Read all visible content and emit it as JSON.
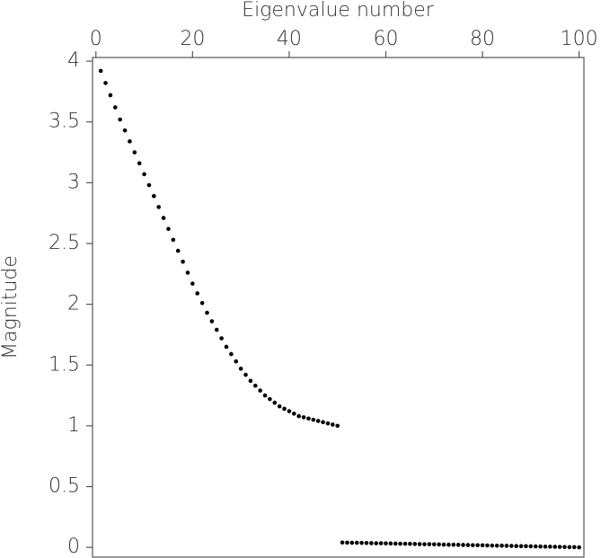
{
  "chart_data": {
    "type": "scatter",
    "xlabel": "Eigenvalue number",
    "ylabel": "Magnitude",
    "x": [
      1,
      2,
      3,
      4,
      5,
      6,
      7,
      8,
      9,
      10,
      11,
      12,
      13,
      14,
      15,
      16,
      17,
      18,
      19,
      20,
      21,
      22,
      23,
      24,
      25,
      26,
      27,
      28,
      29,
      30,
      31,
      32,
      33,
      34,
      35,
      36,
      37,
      38,
      39,
      40,
      41,
      42,
      43,
      44,
      45,
      46,
      47,
      48,
      49,
      50,
      51,
      52,
      53,
      54,
      55,
      56,
      57,
      58,
      59,
      60,
      61,
      62,
      63,
      64,
      65,
      66,
      67,
      68,
      69,
      70,
      71,
      72,
      73,
      74,
      75,
      76,
      77,
      78,
      79,
      80,
      81,
      82,
      83,
      84,
      85,
      86,
      87,
      88,
      89,
      90,
      91,
      92,
      93,
      94,
      95,
      96,
      97,
      98,
      99,
      100
    ],
    "values": [
      3.92,
      3.82,
      3.72,
      3.62,
      3.52,
      3.43,
      3.34,
      3.25,
      3.16,
      3.07,
      2.98,
      2.89,
      2.8,
      2.71,
      2.62,
      2.53,
      2.44,
      2.35,
      2.26,
      2.17,
      2.09,
      2.01,
      1.93,
      1.86,
      1.79,
      1.72,
      1.65,
      1.59,
      1.53,
      1.47,
      1.42,
      1.37,
      1.33,
      1.29,
      1.25,
      1.22,
      1.19,
      1.16,
      1.14,
      1.12,
      1.1,
      1.08,
      1.07,
      1.06,
      1.05,
      1.04,
      1.03,
      1.02,
      1.01,
      1.0,
      0.04,
      0.039,
      0.038,
      0.038,
      0.037,
      0.036,
      0.035,
      0.034,
      0.034,
      0.033,
      0.032,
      0.031,
      0.03,
      0.03,
      0.029,
      0.028,
      0.027,
      0.026,
      0.026,
      0.025,
      0.024,
      0.023,
      0.022,
      0.022,
      0.021,
      0.02,
      0.019,
      0.018,
      0.018,
      0.017,
      0.016,
      0.015,
      0.014,
      0.014,
      0.013,
      0.012,
      0.011,
      0.01,
      0.01,
      0.009,
      0.008,
      0.007,
      0.006,
      0.006,
      0.005,
      0.004,
      0.003,
      0.002,
      0.002,
      0.0
    ],
    "color": "#000000",
    "xlim": [
      -0.7,
      101
    ],
    "ylim": [
      -0.08,
      4.03
    ],
    "xticks": [
      0,
      20,
      40,
      60,
      80,
      100
    ],
    "yticks": [
      0,
      0.5,
      1,
      1.5,
      2,
      2.5,
      3,
      3.5,
      4
    ]
  }
}
